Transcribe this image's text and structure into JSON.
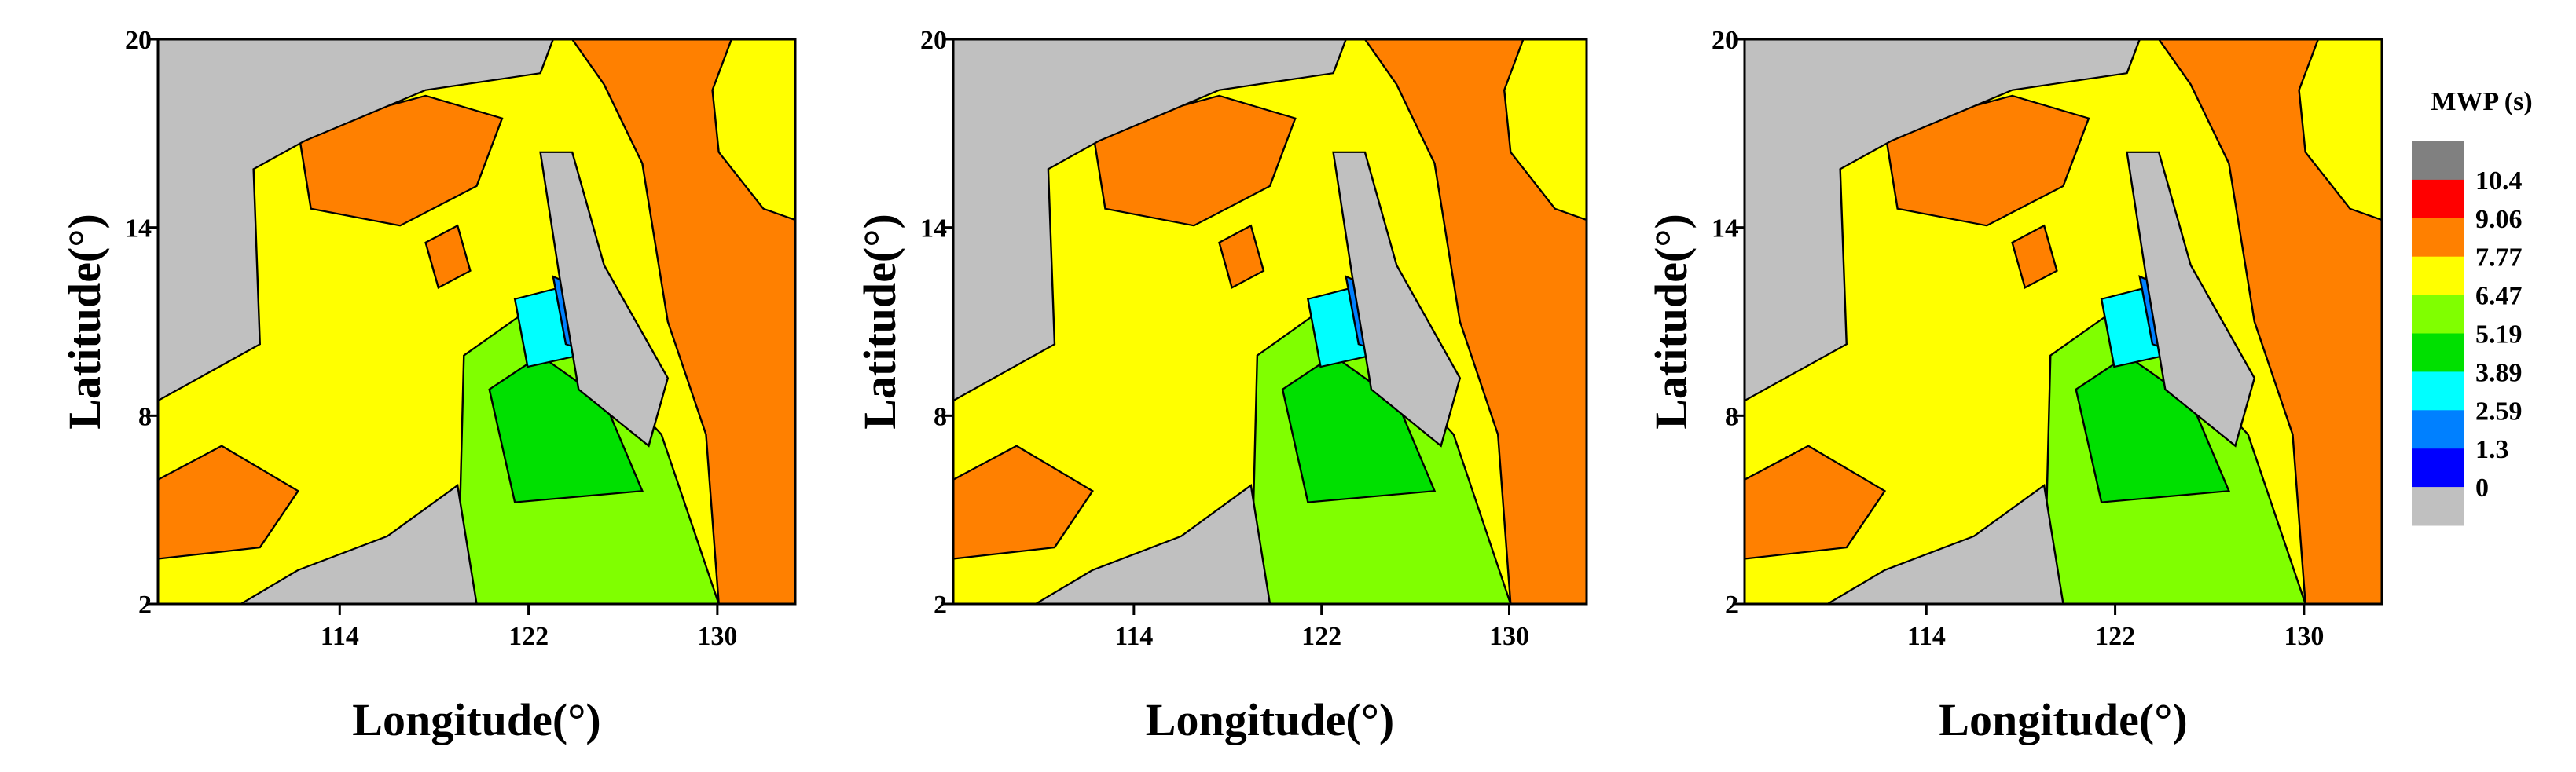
{
  "chart_data": [
    {
      "type": "contour",
      "xlabel": "Longitude(°)",
      "ylabel": "Latitude(°)",
      "xlim": [
        106.3,
        133.3
      ],
      "ylim": [
        2,
        20
      ],
      "xticks": [
        114,
        122,
        130
      ],
      "yticks": [
        2,
        8,
        14,
        20
      ]
    },
    {
      "type": "contour",
      "xlabel": "Longitude(°)",
      "ylabel": "Latitude(°)",
      "xlim": [
        106.3,
        133.3
      ],
      "ylim": [
        2,
        20
      ],
      "xticks": [
        114,
        122,
        130
      ],
      "yticks": [
        2,
        8,
        14,
        20
      ]
    },
    {
      "type": "contour",
      "xlabel": "Longitude(°)",
      "ylabel": "Latitude(°)",
      "xlim": [
        106.3,
        133.3
      ],
      "ylim": [
        2,
        20
      ],
      "xticks": [
        114,
        122,
        130
      ],
      "yticks": [
        2,
        8,
        14,
        20
      ],
      "colorbar": {
        "title": "MWP (s)",
        "levels": [
          {
            "value": 10.4,
            "label": "10.4"
          },
          {
            "value": 9.06,
            "label": "9.06"
          },
          {
            "value": 7.77,
            "label": "7.77"
          },
          {
            "value": 6.47,
            "label": "6.47"
          },
          {
            "value": 5.19,
            "label": "5.19"
          },
          {
            "value": 3.89,
            "label": "3.89"
          },
          {
            "value": 2.59,
            "label": "2.59"
          },
          {
            "value": 1.3,
            "label": "1.3"
          },
          0
        ],
        "colors": [
          "#808080",
          "#ff0000",
          "#ff8000",
          "#ffff00",
          "#80ff00",
          "#00e000",
          "#00ffff",
          "#0080ff",
          "#0000ff",
          "#c0c0c0"
        ]
      }
    }
  ]
}
